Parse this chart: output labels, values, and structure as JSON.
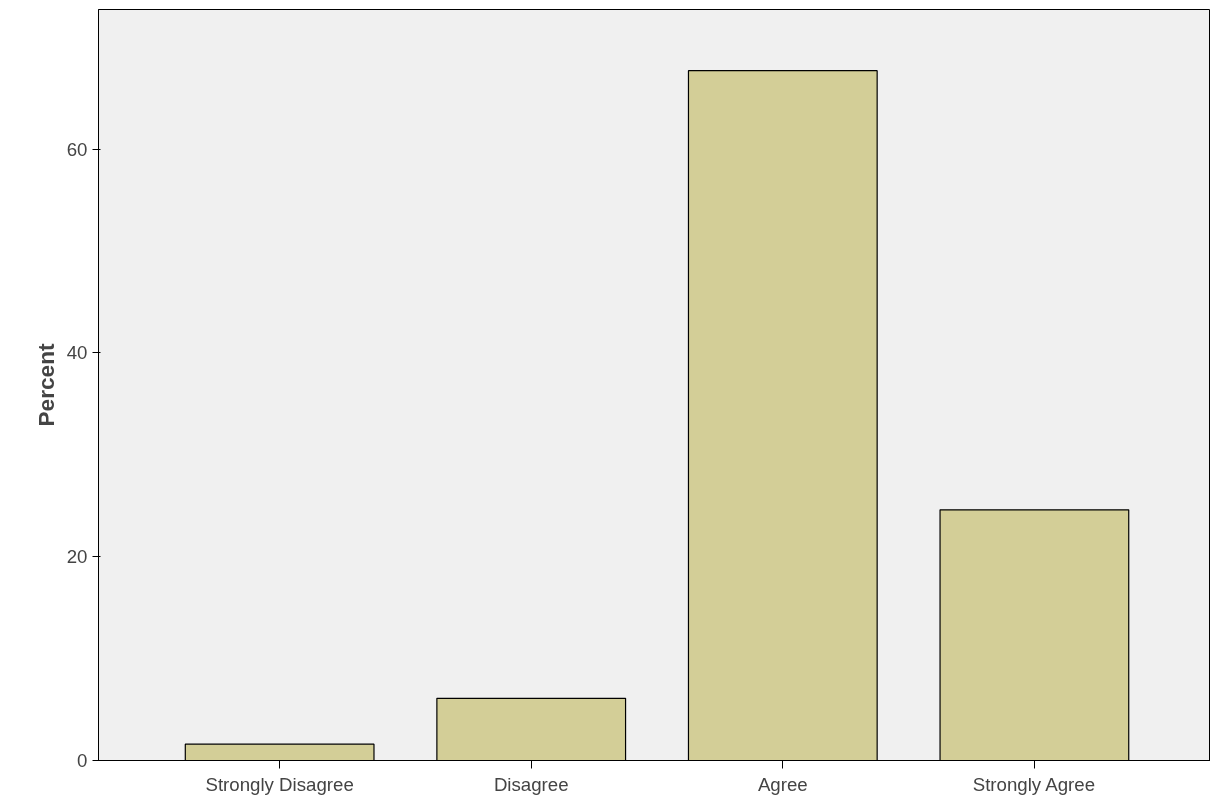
{
  "chart_data": {
    "type": "bar",
    "ylabel": "Percent",
    "categories": [
      "Strongly Disagree",
      "Disagree",
      "Agree",
      "Strongly Agree"
    ],
    "values": [
      1.6,
      6.1,
      67.7,
      24.6
    ],
    "color": "#d3ce97",
    "ylim": [
      0,
      73.7
    ],
    "yticks": [
      0,
      20,
      40,
      60
    ],
    "grid": false
  }
}
